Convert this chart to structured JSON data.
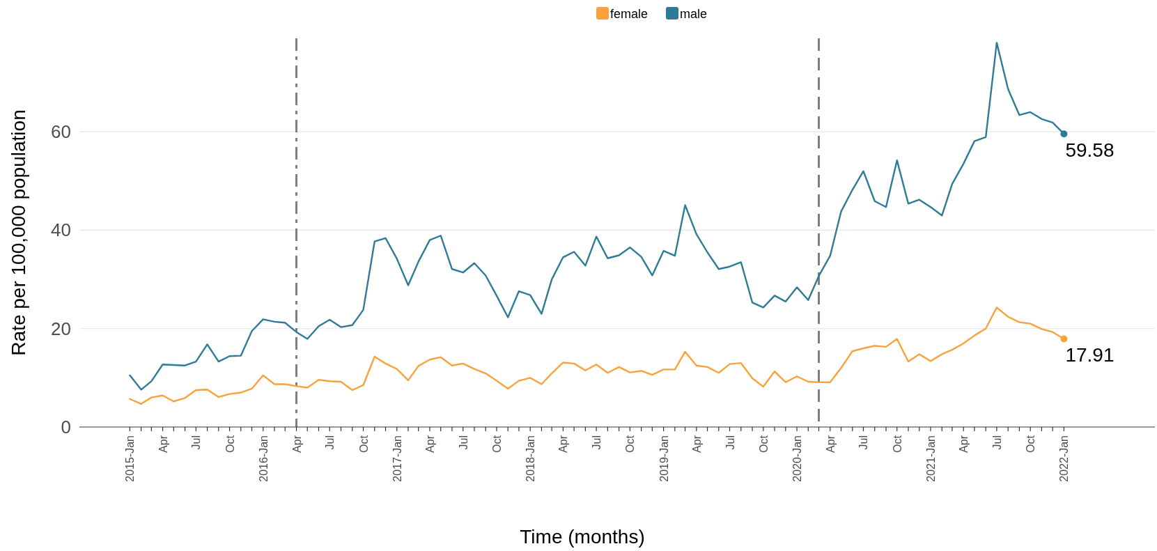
{
  "chart_data": {
    "type": "line",
    "xlabel": "Time (months)",
    "ylabel": "Rate per 100,000 population",
    "legend": "top",
    "grid": "y",
    "line_style": "solid",
    "xlim": [
      "2014-08-16",
      "2022-09-07"
    ],
    "ylim": [
      0,
      79
    ],
    "yticks": [
      0,
      20,
      40,
      60
    ],
    "x": [
      "2015-01",
      "2015-02",
      "2015-03",
      "2015-04",
      "2015-05",
      "2015-06",
      "2015-07",
      "2015-08",
      "2015-09",
      "2015-10",
      "2015-11",
      "2015-12",
      "2016-01",
      "2016-02",
      "2016-03",
      "2016-04",
      "2016-05",
      "2016-06",
      "2016-07",
      "2016-08",
      "2016-09",
      "2016-10",
      "2016-11",
      "2016-12",
      "2017-01",
      "2017-02",
      "2017-03",
      "2017-04",
      "2017-05",
      "2017-06",
      "2017-07",
      "2017-08",
      "2017-09",
      "2017-10",
      "2017-11",
      "2017-12",
      "2018-01",
      "2018-02",
      "2018-03",
      "2018-04",
      "2018-05",
      "2018-06",
      "2018-07",
      "2018-08",
      "2018-09",
      "2018-10",
      "2018-11",
      "2018-12",
      "2019-01",
      "2019-02",
      "2019-03",
      "2019-04",
      "2019-05",
      "2019-06",
      "2019-07",
      "2019-08",
      "2019-09",
      "2019-10",
      "2019-11",
      "2019-12",
      "2020-01",
      "2020-02",
      "2020-03",
      "2020-04",
      "2020-05",
      "2020-06",
      "2020-07",
      "2020-08",
      "2020-09",
      "2020-10",
      "2020-11",
      "2020-12",
      "2021-01",
      "2021-02",
      "2021-03",
      "2021-04",
      "2021-05",
      "2021-06",
      "2021-07",
      "2021-08",
      "2021-09",
      "2021-10",
      "2021-11",
      "2021-12",
      "2022-01"
    ],
    "xticks": [
      {
        "value": "2015-01",
        "label": "2015-Jan"
      },
      {
        "value": "2015-02",
        "label": null
      },
      {
        "value": "2015-03",
        "label": null
      },
      {
        "value": "2015-04",
        "label": "Apr"
      },
      {
        "value": "2015-05",
        "label": null
      },
      {
        "value": "2015-06",
        "label": null
      },
      {
        "value": "2015-07",
        "label": "Jul"
      },
      {
        "value": "2015-08",
        "label": null
      },
      {
        "value": "2015-09",
        "label": null
      },
      {
        "value": "2015-10",
        "label": "Oct"
      },
      {
        "value": "2015-11",
        "label": null
      },
      {
        "value": "2015-12",
        "label": null
      },
      {
        "value": "2016-01",
        "label": "2016-Jan"
      },
      {
        "value": "2016-02",
        "label": null
      },
      {
        "value": "2016-03",
        "label": null
      },
      {
        "value": "2016-04",
        "label": "Apr"
      },
      {
        "value": "2016-05",
        "label": null
      },
      {
        "value": "2016-06",
        "label": null
      },
      {
        "value": "2016-07",
        "label": "Jul"
      },
      {
        "value": "2016-08",
        "label": null
      },
      {
        "value": "2016-09",
        "label": null
      },
      {
        "value": "2016-10",
        "label": "Oct"
      },
      {
        "value": "2016-11",
        "label": null
      },
      {
        "value": "2016-12",
        "label": null
      },
      {
        "value": "2017-01",
        "label": "2017-Jan"
      },
      {
        "value": "2017-02",
        "label": null
      },
      {
        "value": "2017-03",
        "label": null
      },
      {
        "value": "2017-04",
        "label": "Apr"
      },
      {
        "value": "2017-05",
        "label": null
      },
      {
        "value": "2017-06",
        "label": null
      },
      {
        "value": "2017-07",
        "label": "Jul"
      },
      {
        "value": "2017-08",
        "label": null
      },
      {
        "value": "2017-09",
        "label": null
      },
      {
        "value": "2017-10",
        "label": "Oct"
      },
      {
        "value": "2017-11",
        "label": null
      },
      {
        "value": "2017-12",
        "label": null
      },
      {
        "value": "2018-01",
        "label": "2018-Jan"
      },
      {
        "value": "2018-02",
        "label": null
      },
      {
        "value": "2018-03",
        "label": null
      },
      {
        "value": "2018-04",
        "label": "Apr"
      },
      {
        "value": "2018-05",
        "label": null
      },
      {
        "value": "2018-06",
        "label": null
      },
      {
        "value": "2018-07",
        "label": "Jul"
      },
      {
        "value": "2018-08",
        "label": null
      },
      {
        "value": "2018-09",
        "label": null
      },
      {
        "value": "2018-10",
        "label": "Oct"
      },
      {
        "value": "2018-11",
        "label": null
      },
      {
        "value": "2018-12",
        "label": null
      },
      {
        "value": "2019-01",
        "label": "2019-Jan"
      },
      {
        "value": "2019-02",
        "label": null
      },
      {
        "value": "2019-03",
        "label": null
      },
      {
        "value": "2019-04",
        "label": "Apr"
      },
      {
        "value": "2019-05",
        "label": null
      },
      {
        "value": "2019-06",
        "label": null
      },
      {
        "value": "2019-07",
        "label": "Jul"
      },
      {
        "value": "2019-08",
        "label": null
      },
      {
        "value": "2019-09",
        "label": null
      },
      {
        "value": "2019-10",
        "label": "Oct"
      },
      {
        "value": "2019-11",
        "label": null
      },
      {
        "value": "2019-12",
        "label": null
      },
      {
        "value": "2020-01",
        "label": "2020-Jan"
      },
      {
        "value": "2020-02",
        "label": null
      },
      {
        "value": "2020-03",
        "label": null
      },
      {
        "value": "2020-04",
        "label": "Apr"
      },
      {
        "value": "2020-05",
        "label": null
      },
      {
        "value": "2020-06",
        "label": null
      },
      {
        "value": "2020-07",
        "label": "Jul"
      },
      {
        "value": "2020-08",
        "label": null
      },
      {
        "value": "2020-09",
        "label": null
      },
      {
        "value": "2020-10",
        "label": "Oct"
      },
      {
        "value": "2020-11",
        "label": null
      },
      {
        "value": "2020-12",
        "label": null
      },
      {
        "value": "2021-01",
        "label": "2021-Jan"
      },
      {
        "value": "2021-02",
        "label": null
      },
      {
        "value": "2021-03",
        "label": null
      },
      {
        "value": "2021-04",
        "label": "Apr"
      },
      {
        "value": "2021-05",
        "label": null
      },
      {
        "value": "2021-06",
        "label": null
      },
      {
        "value": "2021-07",
        "label": "Jul"
      },
      {
        "value": "2021-08",
        "label": null
      },
      {
        "value": "2021-09",
        "label": null
      },
      {
        "value": "2021-10",
        "label": "Oct"
      },
      {
        "value": "2021-11",
        "label": null
      },
      {
        "value": "2021-12",
        "label": null
      },
      {
        "value": "2022-01",
        "label": "2022-Jan"
      }
    ],
    "ref_lines": [
      {
        "axis": "x",
        "value": "2016-04",
        "label": null,
        "color": "#7f7f7f",
        "line_style": "dashdot"
      },
      {
        "axis": "x",
        "value": "2020-03",
        "label": null,
        "color": "#7f7f7f",
        "line_style": "dashed"
      }
    ],
    "series": [
      {
        "name": "female",
        "color": "#f9a23b",
        "values": [
          5.7,
          4.7,
          6.0,
          6.4,
          5.2,
          5.9,
          7.5,
          7.6,
          6.1,
          6.7,
          7.0,
          7.8,
          10.5,
          8.7,
          8.7,
          8.3,
          8.0,
          9.6,
          9.3,
          9.2,
          7.5,
          8.5,
          14.3,
          12.9,
          11.8,
          9.5,
          12.4,
          13.7,
          14.2,
          12.5,
          12.9,
          11.8,
          10.9,
          9.4,
          7.8,
          9.4,
          10.0,
          8.7,
          10.9,
          13.1,
          12.9,
          11.5,
          12.7,
          11.0,
          12.2,
          11.1,
          11.4,
          10.6,
          11.7,
          11.7,
          15.3,
          12.5,
          12.2,
          11.0,
          12.8,
          13.0,
          9.9,
          8.2,
          11.3,
          9.1,
          10.3,
          9.2,
          9.1,
          9.1,
          12.0,
          15.4,
          16.0,
          16.5,
          16.3,
          17.9,
          13.3,
          14.8,
          13.4,
          14.8,
          15.7,
          17.0,
          18.6,
          20.0,
          24.3,
          22.4,
          21.3,
          21.0,
          19.9,
          19.3,
          17.91
        ],
        "value_labels": [
          null,
          null,
          null,
          null,
          null,
          null,
          null,
          null,
          null,
          null,
          null,
          null,
          null,
          null,
          null,
          null,
          null,
          null,
          null,
          null,
          null,
          null,
          null,
          null,
          null,
          null,
          null,
          null,
          null,
          null,
          null,
          null,
          null,
          null,
          null,
          null,
          null,
          null,
          null,
          null,
          null,
          null,
          null,
          null,
          null,
          null,
          null,
          null,
          null,
          null,
          null,
          null,
          null,
          null,
          null,
          null,
          null,
          null,
          null,
          null,
          null,
          null,
          null,
          null,
          null,
          null,
          null,
          null,
          null,
          null,
          null,
          null,
          null,
          null,
          null,
          null,
          null,
          null,
          null,
          null,
          null,
          null,
          null,
          null,
          "17.91"
        ]
      },
      {
        "name": "male",
        "color": "#2e7b98",
        "values": [
          10.5,
          7.6,
          9.3,
          12.7,
          12.6,
          12.5,
          13.3,
          16.8,
          13.3,
          14.4,
          14.5,
          19.5,
          21.9,
          21.4,
          21.2,
          19.3,
          17.9,
          20.5,
          21.8,
          20.3,
          20.7,
          23.8,
          37.7,
          38.4,
          34.2,
          28.8,
          33.6,
          38.0,
          38.9,
          32.1,
          31.4,
          33.3,
          30.8,
          26.7,
          22.3,
          27.6,
          26.8,
          23.0,
          30.0,
          34.5,
          35.6,
          32.8,
          38.7,
          34.3,
          34.9,
          36.5,
          34.6,
          30.8,
          35.8,
          34.8,
          45.1,
          39.2,
          35.5,
          32.1,
          32.6,
          33.5,
          25.3,
          24.3,
          26.7,
          25.5,
          28.4,
          25.8,
          30.7,
          34.8,
          43.8,
          48.2,
          52.0,
          45.9,
          44.7,
          54.2,
          45.4,
          46.2,
          44.7,
          43.0,
          49.4,
          53.5,
          58.1,
          58.9,
          78.1,
          68.7,
          63.4,
          64.0,
          62.6,
          61.9,
          59.58
        ],
        "value_labels": [
          null,
          null,
          null,
          null,
          null,
          null,
          null,
          null,
          null,
          null,
          null,
          null,
          null,
          null,
          null,
          null,
          null,
          null,
          null,
          null,
          null,
          null,
          null,
          null,
          null,
          null,
          null,
          null,
          null,
          null,
          null,
          null,
          null,
          null,
          null,
          null,
          null,
          null,
          null,
          null,
          null,
          null,
          null,
          null,
          null,
          null,
          null,
          null,
          null,
          null,
          null,
          null,
          null,
          null,
          null,
          null,
          null,
          null,
          null,
          null,
          null,
          null,
          null,
          null,
          null,
          null,
          null,
          null,
          null,
          null,
          null,
          null,
          null,
          null,
          null,
          null,
          null,
          null,
          null,
          null,
          null,
          null,
          null,
          null,
          "59.58"
        ]
      }
    ]
  }
}
